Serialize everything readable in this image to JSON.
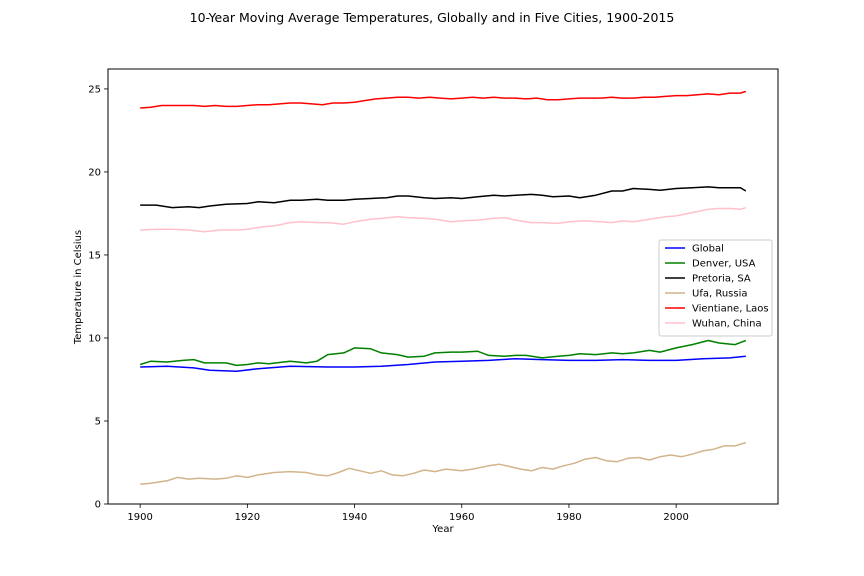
{
  "chart_data": {
    "type": "line",
    "title": "10-Year Moving Average Temperatures, Globally and in Five Cities, 1900-2015",
    "xlabel": "Year",
    "ylabel": "Temperature in Celsius",
    "xlim": [
      1894,
      2019
    ],
    "ylim": [
      0,
      26.2
    ],
    "xticks": [
      1900,
      1920,
      1940,
      1960,
      1980,
      2000
    ],
    "yticks": [
      0,
      5,
      10,
      15,
      20,
      25
    ],
    "grid": false,
    "legend_position": "right",
    "series": [
      {
        "name": "Global",
        "color": "#0000ff",
        "points": [
          [
            1900,
            8.25
          ],
          [
            1905,
            8.3
          ],
          [
            1910,
            8.2
          ],
          [
            1913,
            8.05
          ],
          [
            1918,
            8.0
          ],
          [
            1922,
            8.15
          ],
          [
            1928,
            8.3
          ],
          [
            1935,
            8.25
          ],
          [
            1940,
            8.25
          ],
          [
            1945,
            8.3
          ],
          [
            1950,
            8.4
          ],
          [
            1955,
            8.55
          ],
          [
            1960,
            8.6
          ],
          [
            1965,
            8.65
          ],
          [
            1970,
            8.75
          ],
          [
            1975,
            8.7
          ],
          [
            1980,
            8.65
          ],
          [
            1985,
            8.65
          ],
          [
            1990,
            8.7
          ],
          [
            1995,
            8.65
          ],
          [
            2000,
            8.65
          ],
          [
            2005,
            8.75
          ],
          [
            2010,
            8.8
          ],
          [
            2013,
            8.9
          ]
        ]
      },
      {
        "name": "Denver, USA",
        "color": "#008000",
        "points": [
          [
            1900,
            8.4
          ],
          [
            1902,
            8.6
          ],
          [
            1905,
            8.55
          ],
          [
            1908,
            8.65
          ],
          [
            1910,
            8.7
          ],
          [
            1912,
            8.5
          ],
          [
            1916,
            8.5
          ],
          [
            1918,
            8.35
          ],
          [
            1920,
            8.4
          ],
          [
            1922,
            8.5
          ],
          [
            1924,
            8.45
          ],
          [
            1928,
            8.6
          ],
          [
            1931,
            8.5
          ],
          [
            1933,
            8.6
          ],
          [
            1935,
            9.0
          ],
          [
            1938,
            9.1
          ],
          [
            1940,
            9.4
          ],
          [
            1943,
            9.35
          ],
          [
            1945,
            9.1
          ],
          [
            1948,
            9.0
          ],
          [
            1950,
            8.85
          ],
          [
            1953,
            8.9
          ],
          [
            1955,
            9.1
          ],
          [
            1958,
            9.15
          ],
          [
            1960,
            9.15
          ],
          [
            1963,
            9.2
          ],
          [
            1965,
            8.95
          ],
          [
            1968,
            8.9
          ],
          [
            1970,
            8.95
          ],
          [
            1972,
            8.95
          ],
          [
            1975,
            8.8
          ],
          [
            1978,
            8.9
          ],
          [
            1980,
            8.95
          ],
          [
            1982,
            9.05
          ],
          [
            1985,
            9.0
          ],
          [
            1988,
            9.1
          ],
          [
            1990,
            9.05
          ],
          [
            1992,
            9.1
          ],
          [
            1995,
            9.25
          ],
          [
            1997,
            9.15
          ],
          [
            2000,
            9.4
          ],
          [
            2003,
            9.6
          ],
          [
            2006,
            9.85
          ],
          [
            2008,
            9.7
          ],
          [
            2011,
            9.6
          ],
          [
            2013,
            9.85
          ]
        ]
      },
      {
        "name": "Pretoria, SA",
        "color": "#000000",
        "points": [
          [
            1900,
            18.0
          ],
          [
            1903,
            18.0
          ],
          [
            1906,
            17.85
          ],
          [
            1909,
            17.9
          ],
          [
            1911,
            17.85
          ],
          [
            1913,
            17.95
          ],
          [
            1916,
            18.05
          ],
          [
            1920,
            18.1
          ],
          [
            1922,
            18.2
          ],
          [
            1925,
            18.15
          ],
          [
            1928,
            18.3
          ],
          [
            1930,
            18.3
          ],
          [
            1933,
            18.35
          ],
          [
            1935,
            18.3
          ],
          [
            1938,
            18.3
          ],
          [
            1940,
            18.35
          ],
          [
            1943,
            18.4
          ],
          [
            1946,
            18.45
          ],
          [
            1948,
            18.55
          ],
          [
            1950,
            18.55
          ],
          [
            1953,
            18.45
          ],
          [
            1955,
            18.4
          ],
          [
            1958,
            18.45
          ],
          [
            1960,
            18.4
          ],
          [
            1963,
            18.5
          ],
          [
            1966,
            18.6
          ],
          [
            1968,
            18.55
          ],
          [
            1970,
            18.6
          ],
          [
            1973,
            18.65
          ],
          [
            1975,
            18.6
          ],
          [
            1977,
            18.5
          ],
          [
            1980,
            18.55
          ],
          [
            1982,
            18.45
          ],
          [
            1985,
            18.6
          ],
          [
            1988,
            18.85
          ],
          [
            1990,
            18.85
          ],
          [
            1992,
            19.0
          ],
          [
            1995,
            18.95
          ],
          [
            1997,
            18.9
          ],
          [
            2000,
            19.0
          ],
          [
            2003,
            19.05
          ],
          [
            2006,
            19.1
          ],
          [
            2008,
            19.05
          ],
          [
            2010,
            19.05
          ],
          [
            2012,
            19.05
          ],
          [
            2013,
            18.85
          ]
        ]
      },
      {
        "name": "Ufa, Russia",
        "color": "#d2b48c",
        "points": [
          [
            1900,
            1.2
          ],
          [
            1902,
            1.25
          ],
          [
            1905,
            1.4
          ],
          [
            1907,
            1.6
          ],
          [
            1909,
            1.5
          ],
          [
            1911,
            1.55
          ],
          [
            1914,
            1.5
          ],
          [
            1916,
            1.55
          ],
          [
            1918,
            1.7
          ],
          [
            1920,
            1.6
          ],
          [
            1922,
            1.75
          ],
          [
            1925,
            1.9
          ],
          [
            1928,
            1.95
          ],
          [
            1931,
            1.9
          ],
          [
            1933,
            1.75
          ],
          [
            1935,
            1.7
          ],
          [
            1937,
            1.9
          ],
          [
            1939,
            2.15
          ],
          [
            1941,
            2.0
          ],
          [
            1943,
            1.85
          ],
          [
            1945,
            2.0
          ],
          [
            1947,
            1.75
          ],
          [
            1949,
            1.7
          ],
          [
            1951,
            1.85
          ],
          [
            1953,
            2.05
          ],
          [
            1955,
            1.95
          ],
          [
            1957,
            2.1
          ],
          [
            1960,
            2.0
          ],
          [
            1962,
            2.1
          ],
          [
            1965,
            2.3
          ],
          [
            1967,
            2.4
          ],
          [
            1969,
            2.25
          ],
          [
            1971,
            2.1
          ],
          [
            1973,
            2.0
          ],
          [
            1975,
            2.2
          ],
          [
            1977,
            2.1
          ],
          [
            1979,
            2.3
          ],
          [
            1981,
            2.45
          ],
          [
            1983,
            2.7
          ],
          [
            1985,
            2.8
          ],
          [
            1987,
            2.6
          ],
          [
            1989,
            2.55
          ],
          [
            1991,
            2.75
          ],
          [
            1993,
            2.8
          ],
          [
            1995,
            2.65
          ],
          [
            1997,
            2.85
          ],
          [
            1999,
            2.95
          ],
          [
            2001,
            2.85
          ],
          [
            2003,
            3.0
          ],
          [
            2005,
            3.2
          ],
          [
            2007,
            3.3
          ],
          [
            2009,
            3.5
          ],
          [
            2011,
            3.5
          ],
          [
            2013,
            3.7
          ]
        ]
      },
      {
        "name": "Vientiane, Laos",
        "color": "#ff0000",
        "points": [
          [
            1900,
            23.85
          ],
          [
            1902,
            23.9
          ],
          [
            1904,
            24.0
          ],
          [
            1906,
            24.0
          ],
          [
            1908,
            24.0
          ],
          [
            1910,
            24.0
          ],
          [
            1912,
            23.95
          ],
          [
            1914,
            24.0
          ],
          [
            1916,
            23.95
          ],
          [
            1918,
            23.95
          ],
          [
            1920,
            24.0
          ],
          [
            1922,
            24.05
          ],
          [
            1924,
            24.05
          ],
          [
            1926,
            24.1
          ],
          [
            1928,
            24.15
          ],
          [
            1930,
            24.15
          ],
          [
            1932,
            24.1
          ],
          [
            1934,
            24.05
          ],
          [
            1936,
            24.15
          ],
          [
            1938,
            24.15
          ],
          [
            1940,
            24.2
          ],
          [
            1942,
            24.3
          ],
          [
            1944,
            24.4
          ],
          [
            1946,
            24.45
          ],
          [
            1948,
            24.5
          ],
          [
            1950,
            24.5
          ],
          [
            1952,
            24.45
          ],
          [
            1954,
            24.5
          ],
          [
            1956,
            24.45
          ],
          [
            1958,
            24.4
          ],
          [
            1960,
            24.45
          ],
          [
            1962,
            24.5
          ],
          [
            1964,
            24.45
          ],
          [
            1966,
            24.5
          ],
          [
            1968,
            24.45
          ],
          [
            1970,
            24.45
          ],
          [
            1972,
            24.4
          ],
          [
            1974,
            24.45
          ],
          [
            1976,
            24.35
          ],
          [
            1978,
            24.35
          ],
          [
            1980,
            24.4
          ],
          [
            1982,
            24.45
          ],
          [
            1984,
            24.45
          ],
          [
            1986,
            24.45
          ],
          [
            1988,
            24.5
          ],
          [
            1990,
            24.45
          ],
          [
            1992,
            24.45
          ],
          [
            1994,
            24.5
          ],
          [
            1996,
            24.5
          ],
          [
            1998,
            24.55
          ],
          [
            2000,
            24.6
          ],
          [
            2002,
            24.6
          ],
          [
            2004,
            24.65
          ],
          [
            2006,
            24.7
          ],
          [
            2008,
            24.65
          ],
          [
            2010,
            24.75
          ],
          [
            2012,
            24.75
          ],
          [
            2013,
            24.85
          ]
        ]
      },
      {
        "name": "Wuhan, China",
        "color": "#ffc0cb",
        "points": [
          [
            1900,
            16.5
          ],
          [
            1903,
            16.55
          ],
          [
            1906,
            16.55
          ],
          [
            1909,
            16.5
          ],
          [
            1912,
            16.4
          ],
          [
            1915,
            16.5
          ],
          [
            1918,
            16.5
          ],
          [
            1920,
            16.55
          ],
          [
            1923,
            16.7
          ],
          [
            1925,
            16.75
          ],
          [
            1928,
            16.95
          ],
          [
            1930,
            17.0
          ],
          [
            1933,
            16.95
          ],
          [
            1935,
            16.95
          ],
          [
            1938,
            16.85
          ],
          [
            1940,
            17.0
          ],
          [
            1943,
            17.15
          ],
          [
            1945,
            17.2
          ],
          [
            1948,
            17.3
          ],
          [
            1950,
            17.25
          ],
          [
            1953,
            17.2
          ],
          [
            1955,
            17.15
          ],
          [
            1958,
            17.0
          ],
          [
            1960,
            17.05
          ],
          [
            1963,
            17.1
          ],
          [
            1966,
            17.2
          ],
          [
            1968,
            17.25
          ],
          [
            1970,
            17.1
          ],
          [
            1973,
            16.95
          ],
          [
            1975,
            16.95
          ],
          [
            1978,
            16.9
          ],
          [
            1980,
            17.0
          ],
          [
            1983,
            17.05
          ],
          [
            1986,
            17.0
          ],
          [
            1988,
            16.95
          ],
          [
            1990,
            17.05
          ],
          [
            1992,
            17.0
          ],
          [
            1995,
            17.15
          ],
          [
            1998,
            17.3
          ],
          [
            2000,
            17.35
          ],
          [
            2003,
            17.55
          ],
          [
            2006,
            17.75
          ],
          [
            2008,
            17.8
          ],
          [
            2010,
            17.8
          ],
          [
            2012,
            17.75
          ],
          [
            2013,
            17.85
          ]
        ]
      }
    ]
  }
}
